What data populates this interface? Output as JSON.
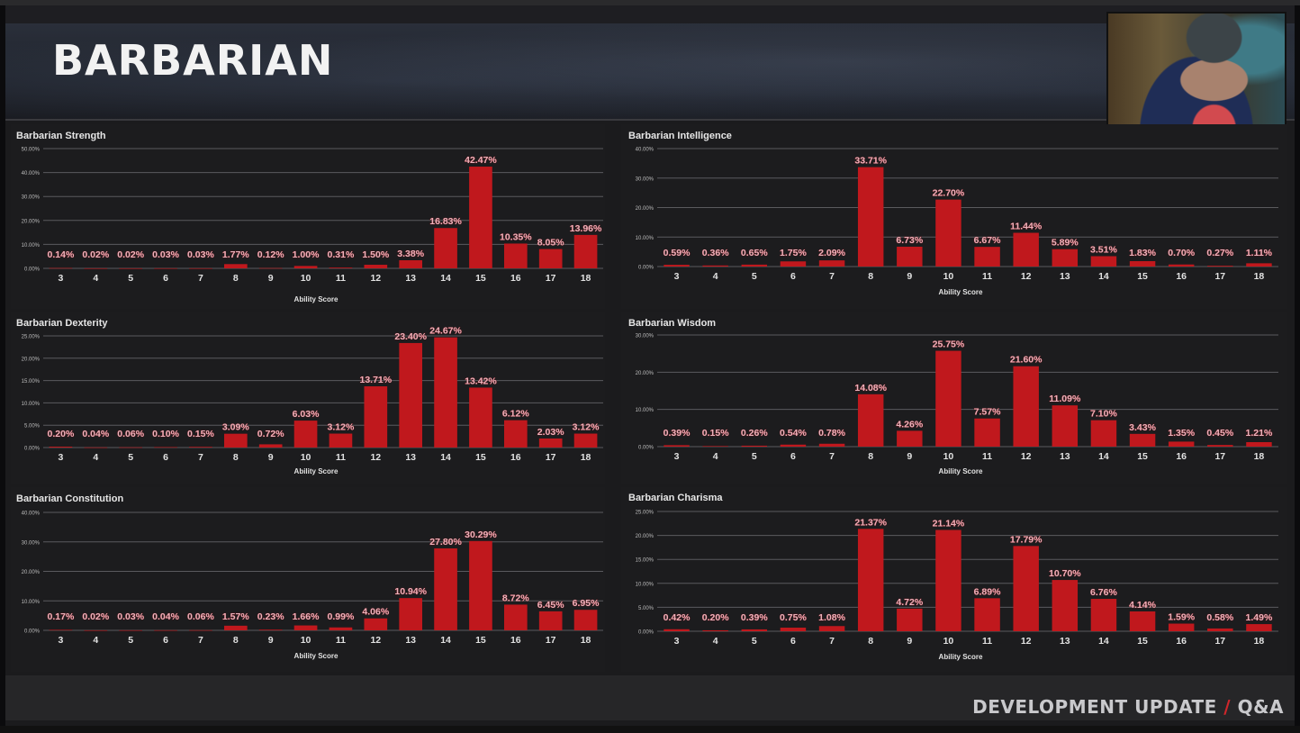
{
  "header": {
    "title": "BARBARIAN"
  },
  "webcam": {
    "label": "presenter-video"
  },
  "footer": {
    "left": "DEVELOPMENT UPDATE",
    "separator": "/",
    "right": "Q&A"
  },
  "colors": {
    "bar": "#c0181d",
    "label_fill": "#e9b3bc",
    "label_stroke": "#7a1016",
    "grid": "#5a5a5e",
    "background": "#1c1c1e"
  },
  "chart_data": [
    {
      "id": "strength",
      "type": "bar",
      "title": "Barbarian Strength",
      "xlabel": "Ability Score",
      "ylabel": "",
      "categories": [
        "3",
        "4",
        "5",
        "6",
        "7",
        "8",
        "9",
        "10",
        "11",
        "12",
        "13",
        "14",
        "15",
        "16",
        "17",
        "18"
      ],
      "values": [
        0.14,
        0.02,
        0.02,
        0.03,
        0.03,
        1.77,
        0.12,
        1.0,
        0.31,
        1.5,
        3.38,
        16.83,
        42.47,
        10.35,
        8.05,
        13.96
      ],
      "labels": [
        "0.14%",
        "0.02%",
        "0.02%",
        "0.03%",
        "0.03%",
        "1.77%",
        "0.12%",
        "1.00%",
        "0.31%",
        "1.50%",
        "3.38%",
        "16.83%",
        "42.47%",
        "10.35%",
        "8.05%",
        "13.96%"
      ],
      "ylim": [
        0,
        50
      ],
      "yticks": [
        "0.00%",
        "10.00%",
        "20.00%",
        "30.00%",
        "40.00%",
        "50.00%"
      ],
      "grid": true
    },
    {
      "id": "intelligence",
      "type": "bar",
      "title": "Barbarian Intelligence",
      "xlabel": "Ability Score",
      "ylabel": "",
      "categories": [
        "3",
        "4",
        "5",
        "6",
        "7",
        "8",
        "9",
        "10",
        "11",
        "12",
        "13",
        "14",
        "15",
        "16",
        "17",
        "18"
      ],
      "values": [
        0.59,
        0.36,
        0.65,
        1.75,
        2.09,
        33.71,
        6.73,
        22.7,
        6.67,
        11.44,
        5.89,
        3.51,
        1.83,
        0.7,
        0.27,
        1.11
      ],
      "labels": [
        "0.59%",
        "0.36%",
        "0.65%",
        "1.75%",
        "2.09%",
        "33.71%",
        "6.73%",
        "22.70%",
        "6.67%",
        "11.44%",
        "5.89%",
        "3.51%",
        "1.83%",
        "0.70%",
        "0.27%",
        "1.11%"
      ],
      "ylim": [
        0,
        40
      ],
      "yticks": [
        "0.00%",
        "10.00%",
        "20.00%",
        "30.00%",
        "40.00%"
      ],
      "grid": true
    },
    {
      "id": "dexterity",
      "type": "bar",
      "title": "Barbarian Dexterity",
      "xlabel": "Ability Score",
      "ylabel": "",
      "categories": [
        "3",
        "4",
        "5",
        "6",
        "7",
        "8",
        "9",
        "10",
        "11",
        "12",
        "13",
        "14",
        "15",
        "16",
        "17",
        "18"
      ],
      "values": [
        0.2,
        0.04,
        0.06,
        0.1,
        0.15,
        3.09,
        0.72,
        6.03,
        3.12,
        13.71,
        23.4,
        24.67,
        13.42,
        6.12,
        2.03,
        3.12
      ],
      "labels": [
        "0.20%",
        "0.04%",
        "0.06%",
        "0.10%",
        "0.15%",
        "3.09%",
        "0.72%",
        "6.03%",
        "3.12%",
        "13.71%",
        "23.40%",
        "24.67%",
        "13.42%",
        "6.12%",
        "2.03%",
        "3.12%"
      ],
      "ylim": [
        0,
        25
      ],
      "yticks": [
        "0.00%",
        "5.00%",
        "10.00%",
        "15.00%",
        "20.00%",
        "25.00%"
      ],
      "grid": true
    },
    {
      "id": "wisdom",
      "type": "bar",
      "title": "Barbarian Wisdom",
      "xlabel": "Ability Score",
      "ylabel": "",
      "categories": [
        "3",
        "4",
        "5",
        "6",
        "7",
        "8",
        "9",
        "10",
        "11",
        "12",
        "13",
        "14",
        "15",
        "16",
        "17",
        "18"
      ],
      "values": [
        0.39,
        0.15,
        0.26,
        0.54,
        0.78,
        14.08,
        4.26,
        25.75,
        7.57,
        21.6,
        11.09,
        7.1,
        3.43,
        1.35,
        0.45,
        1.21
      ],
      "labels": [
        "0.39%",
        "0.15%",
        "0.26%",
        "0.54%",
        "0.78%",
        "14.08%",
        "4.26%",
        "25.75%",
        "7.57%",
        "21.60%",
        "11.09%",
        "7.10%",
        "3.43%",
        "1.35%",
        "0.45%",
        "1.21%"
      ],
      "ylim": [
        0,
        30
      ],
      "yticks": [
        "0.00%",
        "10.00%",
        "20.00%",
        "30.00%"
      ],
      "grid": true
    },
    {
      "id": "constitution",
      "type": "bar",
      "title": "Barbarian Constitution",
      "xlabel": "Ability Score",
      "ylabel": "",
      "categories": [
        "3",
        "4",
        "5",
        "6",
        "7",
        "8",
        "9",
        "10",
        "11",
        "12",
        "13",
        "14",
        "15",
        "16",
        "17",
        "18"
      ],
      "values": [
        0.17,
        0.02,
        0.03,
        0.04,
        0.06,
        1.57,
        0.23,
        1.66,
        0.99,
        4.06,
        10.94,
        27.8,
        30.29,
        8.72,
        6.45,
        6.95
      ],
      "labels": [
        "0.17%",
        "0.02%",
        "0.03%",
        "0.04%",
        "0.06%",
        "1.57%",
        "0.23%",
        "1.66%",
        "0.99%",
        "4.06%",
        "10.94%",
        "27.80%",
        "30.29%",
        "8.72%",
        "6.45%",
        "6.95%"
      ],
      "ylim": [
        0,
        40
      ],
      "yticks": [
        "0.00%",
        "10.00%",
        "20.00%",
        "30.00%",
        "40.00%"
      ],
      "grid": true
    },
    {
      "id": "charisma",
      "type": "bar",
      "title": "Barbarian Charisma",
      "xlabel": "Ability Score",
      "ylabel": "",
      "categories": [
        "3",
        "4",
        "5",
        "6",
        "7",
        "8",
        "9",
        "10",
        "11",
        "12",
        "13",
        "14",
        "15",
        "16",
        "17",
        "18"
      ],
      "values": [
        0.42,
        0.2,
        0.39,
        0.75,
        1.08,
        21.37,
        4.72,
        21.14,
        6.89,
        17.79,
        10.7,
        6.76,
        4.14,
        1.59,
        0.58,
        1.49
      ],
      "labels": [
        "0.42%",
        "0.20%",
        "0.39%",
        "0.75%",
        "1.08%",
        "21.37%",
        "4.72%",
        "21.14%",
        "6.89%",
        "17.79%",
        "10.70%",
        "6.76%",
        "4.14%",
        "1.59%",
        "0.58%",
        "1.49%"
      ],
      "ylim": [
        0,
        25
      ],
      "yticks": [
        "0.00%",
        "5.00%",
        "10.00%",
        "15.00%",
        "20.00%",
        "25.00%"
      ],
      "grid": true
    }
  ]
}
